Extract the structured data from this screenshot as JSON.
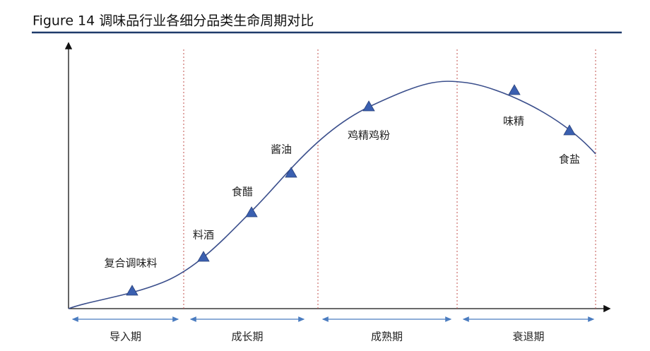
{
  "title": "Figure 14  调味品行业各细分品类生命周期对比",
  "stages": [
    "导入期",
    "成长期",
    "成熟期",
    "衰退期"
  ],
  "products": [
    {
      "label": "复合调味料"
    },
    {
      "label": "料酒"
    },
    {
      "label": "食醋"
    },
    {
      "label": "酱油"
    },
    {
      "label": "鸡精鸡粉"
    },
    {
      "label": "味精"
    },
    {
      "label": "食盐"
    }
  ]
}
